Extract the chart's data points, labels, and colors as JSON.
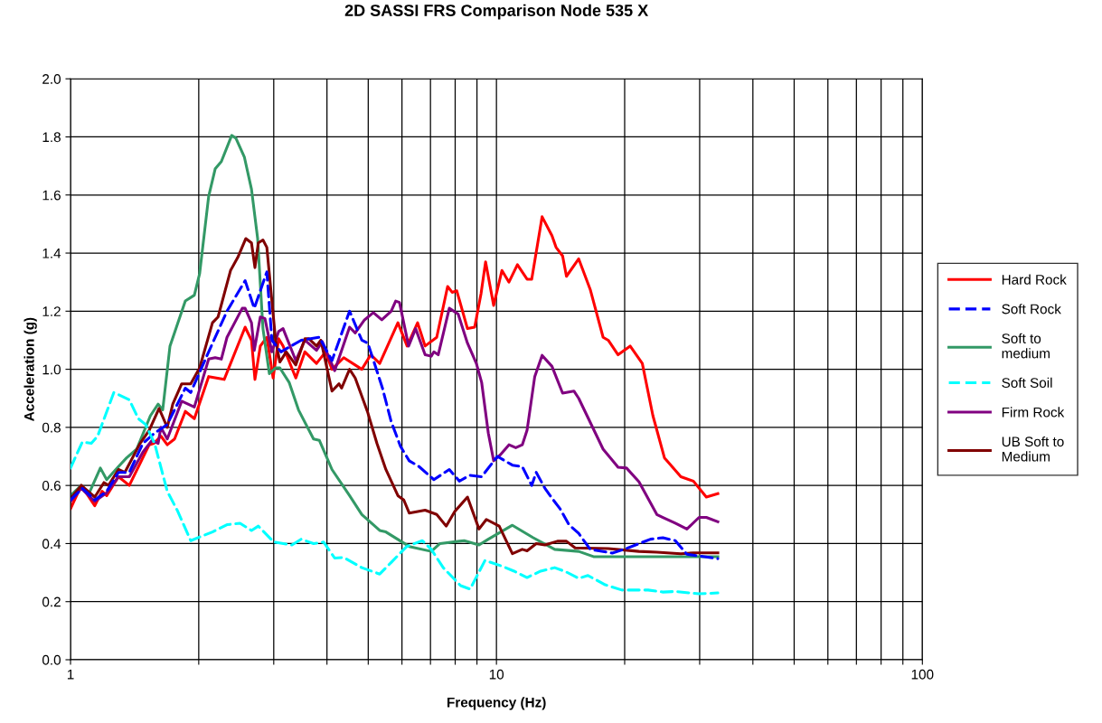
{
  "chart_data": {
    "type": "line",
    "title": "2D SASSI FRS Comparison Node 535 X",
    "xlabel": "Frequency (Hz)",
    "ylabel": "Acceleration (g)",
    "log": "x",
    "grid": true,
    "legend": "right",
    "xlim": [
      1,
      100
    ],
    "xticks": [
      1,
      {
        "value": 2,
        "label": null
      },
      {
        "value": 3,
        "label": null
      },
      {
        "value": 4,
        "label": null
      },
      {
        "value": 5,
        "label": null
      },
      {
        "value": 6,
        "label": null
      },
      {
        "value": 7,
        "label": null
      },
      {
        "value": 8,
        "label": null
      },
      {
        "value": 9,
        "label": null
      },
      10,
      {
        "value": 20,
        "label": null
      },
      {
        "value": 30,
        "label": null
      },
      {
        "value": 40,
        "label": null
      },
      {
        "value": 50,
        "label": null
      },
      {
        "value": 60,
        "label": null
      },
      {
        "value": 70,
        "label": null
      },
      {
        "value": 80,
        "label": null
      },
      {
        "value": 90,
        "label": null
      },
      100
    ],
    "ylim": [
      0,
      2
    ],
    "yticks": [
      {
        "value": 0,
        "label": "0.0"
      },
      {
        "value": 0.2,
        "label": "0.2"
      },
      {
        "value": 0.4,
        "label": "0.4"
      },
      {
        "value": 0.6,
        "label": "0.6"
      },
      {
        "value": 0.8,
        "label": "0.8"
      },
      {
        "value": 1.0,
        "label": "1.0"
      },
      {
        "value": 1.2,
        "label": "1.2"
      },
      {
        "value": 1.4,
        "label": "1.4"
      },
      {
        "value": 1.6,
        "label": "1.6"
      },
      {
        "value": 1.8,
        "label": "1.8"
      },
      {
        "value": 2.0,
        "label": "2.0"
      }
    ],
    "series": [
      {
        "name": "Hard Rock",
        "color": "#ff0000",
        "line_style": "solid",
        "x": [
          1,
          1.06,
          1.14,
          1.186,
          1.216,
          1.296,
          1.374,
          1.53,
          1.57,
          1.63,
          1.687,
          1.755,
          1.86,
          1.953,
          2.11,
          2.295,
          2.57,
          2.66,
          2.71,
          2.79,
          2.89,
          2.99,
          3.08,
          3.155,
          3.38,
          3.55,
          3.78,
          3.97,
          4.11,
          4.38,
          4.83,
          5.07,
          5.32,
          5.87,
          6.17,
          6.53,
          6.8,
          7.24,
          7.68,
          7.87,
          8.07,
          8.55,
          8.89,
          9.2,
          9.43,
          9.85,
          10.3,
          10.7,
          11.2,
          11.8,
          12.1,
          12.8,
          13.5,
          13.8,
          14.3,
          14.6,
          15.6,
          16.6,
          17.8,
          18.3,
          19.3,
          20.6,
          22.0,
          23.3,
          24.8,
          27.1,
          29.0,
          31.1,
          33.1
        ],
        "values": [
          0.52,
          0.6,
          0.53,
          0.58,
          0.565,
          0.63,
          0.6,
          0.74,
          0.745,
          0.77,
          0.74,
          0.76,
          0.855,
          0.83,
          0.975,
          0.965,
          1.145,
          1.1,
          0.965,
          1.08,
          1.11,
          0.97,
          1.105,
          1.08,
          0.97,
          1.06,
          1.02,
          1.06,
          1.0,
          1.04,
          1.0,
          1.05,
          1.02,
          1.16,
          1.08,
          1.16,
          1.08,
          1.11,
          1.285,
          1.265,
          1.27,
          1.14,
          1.145,
          1.26,
          1.37,
          1.22,
          1.34,
          1.3,
          1.36,
          1.31,
          1.31,
          1.525,
          1.46,
          1.42,
          1.39,
          1.32,
          1.38,
          1.275,
          1.11,
          1.1,
          1.05,
          1.08,
          1.02,
          0.84,
          0.695,
          0.63,
          0.615,
          0.56,
          0.572
        ]
      },
      {
        "name": "Soft Rock",
        "color": "#0000ff",
        "line_style": "dashed",
        "x": [
          1,
          1.066,
          1.14,
          1.216,
          1.296,
          1.374,
          1.479,
          1.575,
          1.687,
          1.86,
          1.915,
          2.11,
          2.33,
          2.57,
          2.7,
          2.89,
          2.97,
          3.12,
          3.48,
          3.84,
          4.11,
          4.52,
          4.83,
          4.99,
          5.4,
          5.66,
          5.95,
          6.24,
          6.58,
          7.13,
          7.75,
          8.18,
          8.67,
          9.23,
          10.05,
          10.9,
          11.5,
          12.1,
          12.4,
          13.0,
          13.6,
          14.1,
          14.8,
          15.6,
          16.6,
          18.7,
          20.2,
          23.0,
          24.6,
          26.3,
          28.0,
          33.1
        ],
        "values": [
          0.55,
          0.59,
          0.55,
          0.58,
          0.645,
          0.645,
          0.745,
          0.78,
          0.81,
          0.935,
          0.92,
          1.06,
          1.2,
          1.305,
          1.21,
          1.335,
          1.1,
          1.06,
          1.1,
          1.11,
          1.03,
          1.2,
          1.1,
          1.09,
          0.935,
          0.82,
          0.735,
          0.685,
          0.665,
          0.62,
          0.655,
          0.615,
          0.635,
          0.63,
          0.7,
          0.67,
          0.665,
          0.6,
          0.645,
          0.59,
          0.55,
          0.52,
          0.465,
          0.435,
          0.38,
          0.367,
          0.383,
          0.415,
          0.42,
          0.41,
          0.363,
          0.348
        ]
      },
      {
        "name": "Soft to medium",
        "color": "#339966",
        "line_style": "solid",
        "x": [
          1,
          1.06,
          1.103,
          1.175,
          1.216,
          1.296,
          1.354,
          1.43,
          1.54,
          1.606,
          1.646,
          1.712,
          1.86,
          1.953,
          2.01,
          2.11,
          2.186,
          2.26,
          2.39,
          2.446,
          2.56,
          2.66,
          2.75,
          2.83,
          2.93,
          3.03,
          3.1,
          3.26,
          3.43,
          3.72,
          3.84,
          4.11,
          4.52,
          4.83,
          5.32,
          5.5,
          6.24,
          7.03,
          7.37,
          8.4,
          9.1,
          9.57,
          10.9,
          12.2,
          13.7,
          15.6,
          16.9,
          33.1
        ],
        "values": [
          0.565,
          0.6,
          0.57,
          0.66,
          0.62,
          0.665,
          0.695,
          0.725,
          0.84,
          0.88,
          0.86,
          1.08,
          1.235,
          1.255,
          1.33,
          1.595,
          1.69,
          1.715,
          1.805,
          1.795,
          1.73,
          1.62,
          1.45,
          1.14,
          0.985,
          1.005,
          1.005,
          0.955,
          0.86,
          0.76,
          0.755,
          0.655,
          0.565,
          0.5,
          0.445,
          0.44,
          0.39,
          0.373,
          0.4,
          0.41,
          0.395,
          0.415,
          0.463,
          0.42,
          0.38,
          0.373,
          0.355,
          0.355
        ]
      },
      {
        "name": "Soft Soil",
        "color": "#00ffff",
        "line_style": "dashed",
        "x": [
          1,
          1.066,
          1.119,
          1.158,
          1.264,
          1.374,
          1.443,
          1.5,
          1.575,
          1.687,
          1.78,
          1.915,
          2.154,
          2.33,
          2.5,
          2.66,
          2.76,
          3.0,
          3.31,
          3.48,
          3.72,
          3.93,
          4.17,
          4.38,
          4.83,
          5.32,
          5.66,
          6.16,
          6.7,
          7.03,
          7.5,
          8.24,
          8.67,
          9.4,
          10.4,
          11.0,
          11.8,
          12.7,
          13.7,
          14.6,
          15.6,
          16.4,
          18.0,
          19.7,
          22.7,
          24.6,
          26.3,
          29.9,
          33.1
        ],
        "values": [
          0.66,
          0.75,
          0.745,
          0.77,
          0.92,
          0.895,
          0.83,
          0.81,
          0.745,
          0.58,
          0.515,
          0.41,
          0.44,
          0.465,
          0.47,
          0.445,
          0.46,
          0.405,
          0.395,
          0.415,
          0.4,
          0.405,
          0.35,
          0.352,
          0.317,
          0.295,
          0.335,
          0.39,
          0.41,
          0.38,
          0.317,
          0.255,
          0.243,
          0.342,
          0.32,
          0.305,
          0.283,
          0.305,
          0.317,
          0.302,
          0.28,
          0.29,
          0.258,
          0.24,
          0.24,
          0.233,
          0.235,
          0.227,
          0.23
        ]
      },
      {
        "name": "Firm Rock",
        "color": "#800080",
        "line_style": "solid",
        "x": [
          1,
          1.06,
          1.14,
          1.216,
          1.296,
          1.374,
          1.479,
          1.552,
          1.606,
          1.63,
          1.687,
          1.824,
          1.953,
          2.11,
          2.186,
          2.26,
          2.33,
          2.53,
          2.57,
          2.66,
          2.7,
          2.79,
          2.86,
          2.97,
          3.08,
          3.155,
          3.38,
          3.55,
          3.78,
          3.9,
          4.17,
          4.52,
          4.66,
          4.9,
          5.14,
          5.38,
          5.66,
          5.8,
          5.92,
          6.22,
          6.46,
          6.8,
          7.03,
          7.13,
          7.3,
          7.75,
          8.13,
          8.55,
          8.97,
          9.23,
          9.57,
          9.85,
          10.2,
          10.7,
          11.1,
          11.5,
          11.8,
          12.3,
          12.8,
          13.5,
          14.3,
          15.2,
          15.6,
          17.8,
          19.3,
          20.2,
          21.6,
          23.8,
          24.6,
          26.3,
          28.0,
          29.9,
          31.1,
          33.1
        ],
        "values": [
          0.545,
          0.59,
          0.545,
          0.575,
          0.63,
          0.63,
          0.715,
          0.755,
          0.745,
          0.8,
          0.76,
          0.89,
          0.87,
          1.035,
          1.04,
          1.035,
          1.11,
          1.21,
          1.21,
          1.16,
          1.065,
          1.18,
          1.175,
          1.06,
          1.13,
          1.14,
          1.03,
          1.1,
          1.065,
          1.095,
          0.995,
          1.145,
          1.125,
          1.17,
          1.195,
          1.17,
          1.2,
          1.235,
          1.23,
          1.08,
          1.14,
          1.05,
          1.045,
          1.06,
          1.05,
          1.21,
          1.19,
          1.09,
          1.02,
          0.955,
          0.78,
          0.685,
          0.705,
          0.74,
          0.73,
          0.74,
          0.79,
          0.975,
          1.048,
          1.01,
          0.918,
          0.925,
          0.9,
          0.725,
          0.663,
          0.66,
          0.613,
          0.5,
          0.49,
          0.47,
          0.45,
          0.49,
          0.49,
          0.475
        ]
      },
      {
        "name": "UB Soft to Medium",
        "color": "#800000",
        "line_style": "solid",
        "x": [
          1,
          1.06,
          1.14,
          1.198,
          1.228,
          1.296,
          1.341,
          1.457,
          1.53,
          1.614,
          1.687,
          1.738,
          1.824,
          1.915,
          2.01,
          2.154,
          2.22,
          2.375,
          2.47,
          2.58,
          2.66,
          2.71,
          2.76,
          2.83,
          2.89,
          3.03,
          3.1,
          3.21,
          3.38,
          3.55,
          3.63,
          3.78,
          3.87,
          4.11,
          4.27,
          4.33,
          4.52,
          4.66,
          4.99,
          5.24,
          5.5,
          5.87,
          6.06,
          6.24,
          6.8,
          7.24,
          7.62,
          7.98,
          8.55,
          9.1,
          9.47,
          10.15,
          10.9,
          11.5,
          11.8,
          12.4,
          13.0,
          13.9,
          14.6,
          15.3,
          18.3,
          21.6,
          23.8,
          27.1,
          29.0,
          33.1
        ],
        "values": [
          0.555,
          0.6,
          0.56,
          0.61,
          0.6,
          0.655,
          0.645,
          0.745,
          0.79,
          0.865,
          0.8,
          0.88,
          0.95,
          0.95,
          1.005,
          1.16,
          1.18,
          1.34,
          1.385,
          1.45,
          1.435,
          1.35,
          1.435,
          1.445,
          1.42,
          1.1,
          1.025,
          1.06,
          1.015,
          1.105,
          1.105,
          1.08,
          1.1,
          0.925,
          0.95,
          0.935,
          1.0,
          0.97,
          0.85,
          0.745,
          0.655,
          0.565,
          0.55,
          0.505,
          0.515,
          0.5,
          0.46,
          0.51,
          0.56,
          0.45,
          0.483,
          0.46,
          0.365,
          0.38,
          0.375,
          0.4,
          0.395,
          0.408,
          0.408,
          0.385,
          0.383,
          0.373,
          0.37,
          0.365,
          0.368,
          0.368
        ]
      }
    ]
  }
}
